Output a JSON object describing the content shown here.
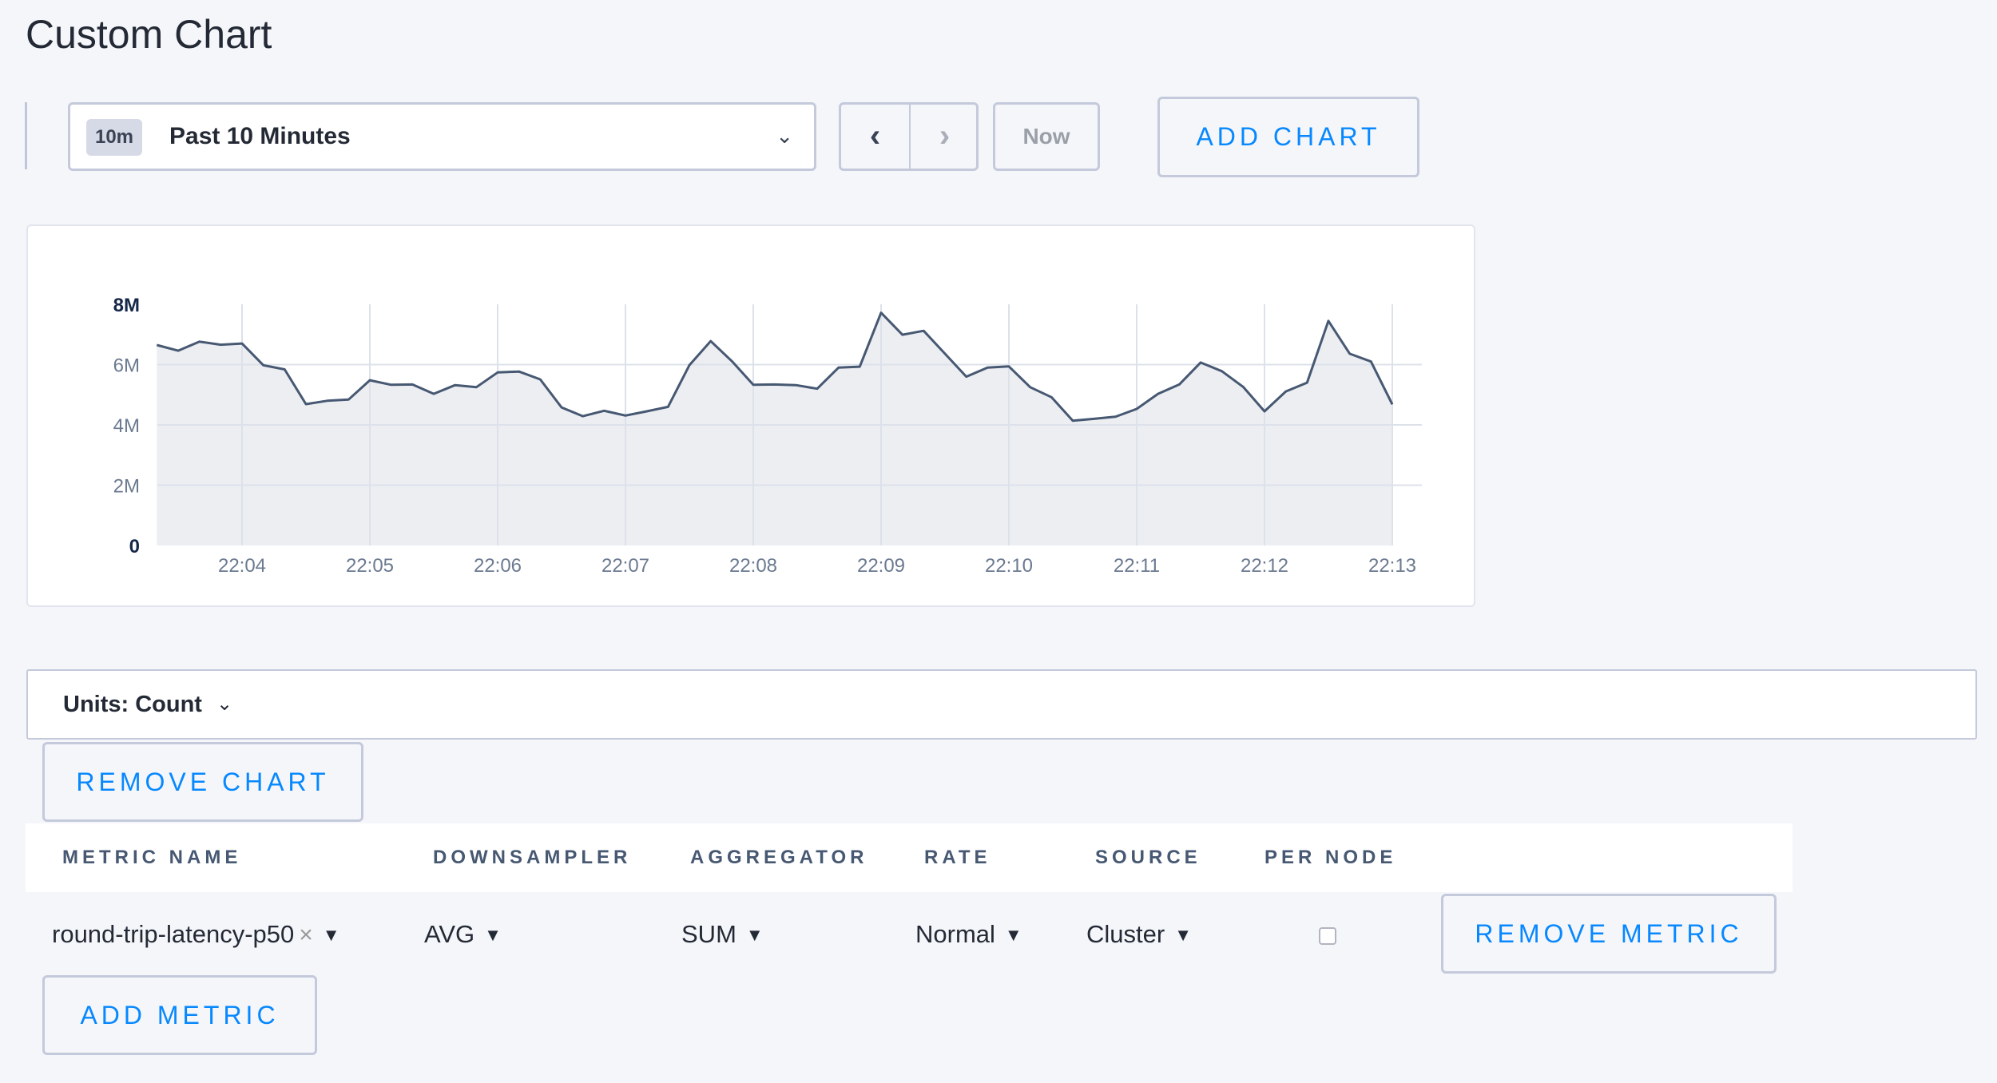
{
  "page": {
    "title": "Custom Chart"
  },
  "toolbar": {
    "range_badge": "10m",
    "range_label": "Past 10 Minutes",
    "range_chevron_icon": "chevron-down-icon",
    "prev_icon": "chevron-left-icon",
    "next_icon": "chevron-right-icon",
    "now_label": "Now",
    "add_chart_label": "ADD CHART"
  },
  "chart_data": {
    "type": "area",
    "title": "",
    "xlabel": "",
    "ylabel": "",
    "ylim": [
      0,
      8000000
    ],
    "y_ticks": [
      "0",
      "2M",
      "4M",
      "6M",
      "8M"
    ],
    "x_ticks": [
      "22:04",
      "22:05",
      "22:06",
      "22:07",
      "22:08",
      "22:09",
      "22:10",
      "22:11",
      "22:12",
      "22:13"
    ],
    "x_start": "22:03:20",
    "x_interval_seconds": 10,
    "grid": true,
    "line_color": "#475872",
    "fill_color": "#eceef2",
    "values": [
      6.65,
      6.46,
      6.76,
      6.66,
      6.7,
      5.98,
      5.84,
      4.69,
      4.8,
      4.84,
      5.48,
      5.33,
      5.34,
      5.03,
      5.32,
      5.25,
      5.74,
      5.77,
      5.51,
      4.58,
      4.29,
      4.47,
      4.31,
      4.45,
      4.6,
      5.98,
      6.78,
      6.11,
      5.33,
      5.34,
      5.32,
      5.2,
      5.9,
      5.93,
      7.72,
      6.99,
      7.12,
      6.36,
      5.6,
      5.9,
      5.94,
      5.25,
      4.92,
      4.14,
      4.2,
      4.27,
      4.53,
      5.03,
      5.34,
      6.07,
      5.78,
      5.26,
      4.45,
      5.11,
      5.4,
      7.45,
      6.36,
      6.1,
      4.68
    ],
    "value_unit_multiplier": 1000000
  },
  "units": {
    "label": "Units: Count",
    "chevron_icon": "chevron-down-icon"
  },
  "remove_chart_label": "REMOVE CHART",
  "table": {
    "columns": [
      "METRIC NAME",
      "DOWNSAMPLER",
      "AGGREGATOR",
      "RATE",
      "SOURCE",
      "PER NODE"
    ],
    "rows": [
      {
        "metric": "round-trip-latency-p50",
        "clear": "×",
        "downsampler": "AVG",
        "aggregator": "SUM",
        "rate": "Normal",
        "source": "Cluster",
        "per_node": false,
        "remove_label": "REMOVE METRIC"
      }
    ]
  },
  "add_metric_label": "ADD METRIC"
}
